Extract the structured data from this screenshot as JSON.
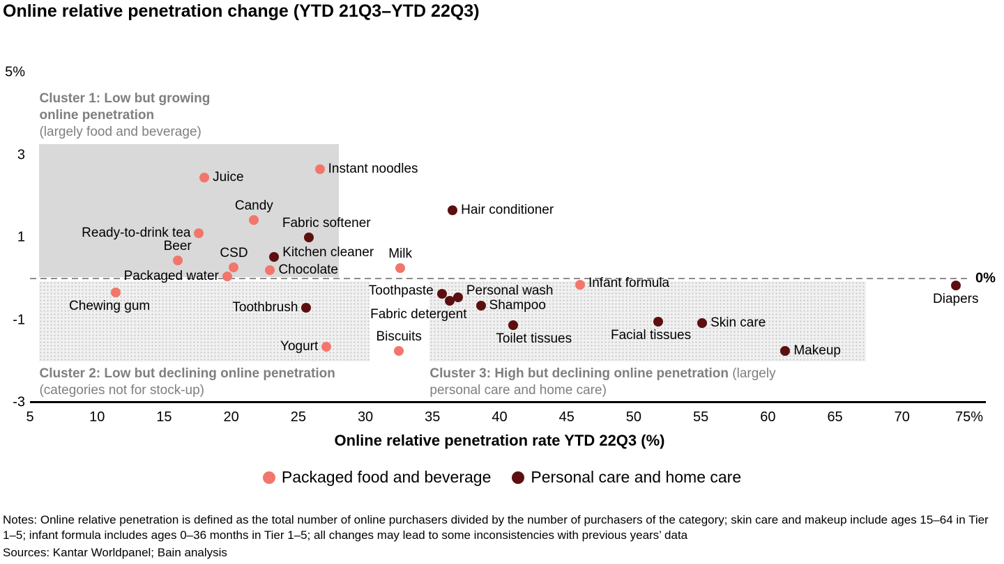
{
  "title": "Online relative penetration change (YTD 21Q3–YTD 22Q3)",
  "chart_data": {
    "type": "scatter",
    "title": "Online relative penetration change (YTD 21Q3–YTD 22Q3)",
    "xlabel": "Online relative penetration rate YTD 22Q3 (%)",
    "ylabel": "",
    "xlim": [
      5,
      75
    ],
    "ylim": [
      -3,
      5
    ],
    "grid": false,
    "legend_position": "bottom",
    "x_ticks": [
      {
        "value": 5,
        "label": "5"
      },
      {
        "value": 10,
        "label": "10"
      },
      {
        "value": 15,
        "label": "15"
      },
      {
        "value": 20,
        "label": "20"
      },
      {
        "value": 25,
        "label": "25"
      },
      {
        "value": 30,
        "label": "30"
      },
      {
        "value": 35,
        "label": "35"
      },
      {
        "value": 40,
        "label": "40"
      },
      {
        "value": 45,
        "label": "45"
      },
      {
        "value": 50,
        "label": "50"
      },
      {
        "value": 55,
        "label": "55"
      },
      {
        "value": 60,
        "label": "60"
      },
      {
        "value": 65,
        "label": "65"
      },
      {
        "value": 70,
        "label": "70"
      },
      {
        "value": 75,
        "label": "75%"
      }
    ],
    "y_ticks": [
      {
        "value": 5,
        "label": "5%"
      },
      {
        "value": 3,
        "label": "3"
      },
      {
        "value": 1,
        "label": "1"
      },
      {
        "value": -1,
        "label": "-1"
      },
      {
        "value": -3,
        "label": "-3"
      }
    ],
    "zero_line": {
      "value": 0,
      "label": "0%"
    },
    "series": [
      {
        "name": "Packaged food and beverage",
        "color": "#f2766b",
        "points": [
          {
            "name": "Juice",
            "x": 18.0,
            "y": 2.45,
            "side": "right"
          },
          {
            "name": "Instant noodles",
            "x": 26.6,
            "y": 2.65,
            "side": "right"
          },
          {
            "name": "Candy",
            "x": 21.7,
            "y": 1.42,
            "side": "above"
          },
          {
            "name": "Ready-to-drink tea",
            "x": 17.6,
            "y": 1.1,
            "side": "left"
          },
          {
            "name": "Beer",
            "x": 16.0,
            "y": 0.45,
            "side": "above"
          },
          {
            "name": "CSD",
            "x": 20.2,
            "y": 0.28,
            "side": "above"
          },
          {
            "name": "Chocolate",
            "x": 22.9,
            "y": 0.2,
            "side": "right"
          },
          {
            "name": "Packaged water",
            "x": 19.7,
            "y": 0.05,
            "side": "left"
          },
          {
            "name": "Milk",
            "x": 32.6,
            "y": 0.26,
            "side": "above"
          },
          {
            "name": "Chewing gum",
            "x": 11.4,
            "y": -0.33,
            "side": "below",
            "dx": -9
          },
          {
            "name": "Yogurt",
            "x": 27.1,
            "y": -1.65,
            "side": "left"
          },
          {
            "name": "Biscuits",
            "x": 32.5,
            "y": -1.75,
            "side": "above"
          },
          {
            "name": "Infant formula",
            "x": 46.0,
            "y": -0.15,
            "side": "right",
            "dy": -2
          }
        ]
      },
      {
        "name": "Personal care and home care",
        "color": "#5c0f10",
        "points": [
          {
            "name": "Fabric softener",
            "x": 25.8,
            "y": 1.0,
            "side": "above",
            "dx": 25
          },
          {
            "name": "Kitchen cleaner",
            "x": 23.2,
            "y": 0.53,
            "side": "right",
            "dy": -6
          },
          {
            "name": "Hair conditioner",
            "x": 36.5,
            "y": 1.65,
            "side": "right"
          },
          {
            "name": "Toothbrush",
            "x": 25.6,
            "y": -0.7,
            "side": "left"
          },
          {
            "name": "Toothpaste",
            "x": 35.7,
            "y": -0.37,
            "side": "left",
            "dy": -4
          },
          {
            "name": "Personal wash",
            "x": 36.9,
            "y": -0.45,
            "side": "right",
            "dy": -9
          },
          {
            "name": "Fabric detergent",
            "x": 36.3,
            "y": -0.53,
            "side": "below",
            "dx": -45
          },
          {
            "name": "Shampoo",
            "x": 38.6,
            "y": -0.65,
            "side": "right"
          },
          {
            "name": "Toilet tissues",
            "x": 41.0,
            "y": -1.12,
            "side": "below",
            "dx": 30
          },
          {
            "name": "Facial tissues",
            "x": 51.8,
            "y": -1.05,
            "side": "below",
            "dx": -10
          },
          {
            "name": "Skin care",
            "x": 55.1,
            "y": -1.08,
            "side": "right"
          },
          {
            "name": "Makeup",
            "x": 61.3,
            "y": -1.75,
            "side": "right"
          },
          {
            "name": "Diapers",
            "x": 74.0,
            "y": -0.16,
            "side": "below"
          }
        ]
      }
    ],
    "clusters": [
      {
        "bold": "Cluster 1: Low but growing online penetration",
        "regular": "(largely food and beverage)",
        "regular_block": true,
        "x0": 5.7,
        "x1": 28.0,
        "y0": 0.03,
        "y1": 3.27,
        "fill": "solid",
        "label_pos": "above",
        "label_width": 300
      },
      {
        "bold": "Cluster 2: Low but declining online penetration",
        "regular": "(categories not for stock-up)",
        "regular_block": false,
        "x0": 5.7,
        "x1": 30.3,
        "y0": -2.0,
        "y1": -0.07,
        "fill": "dotted",
        "label_pos": "below",
        "label_width": 435
      },
      {
        "bold": "Cluster 3: High but declining online penetration",
        "regular": "(largely personal care and home care)",
        "regular_block": false,
        "x0": 34.8,
        "x1": 67.3,
        "y0": -2.0,
        "y1": -0.07,
        "fill": "dotted",
        "label_pos": "below",
        "label_width": 540
      }
    ]
  },
  "legend": [
    {
      "label": "Packaged food and beverage",
      "color": "#f2766b"
    },
    {
      "label": "Personal care and home care",
      "color": "#5c0f10"
    }
  ],
  "notes": "Notes: Online relative penetration is defined as the total number of online purchasers divided by the number of purchasers of the category; skin care and makeup include ages 15–64 in Tier 1–5; infant formula includes ages 0–36 months in Tier 1–5; all changes may lead to some inconsistencies with previous years’ data",
  "sources": "Sources: Kantar Worldpanel; Bain analysis"
}
